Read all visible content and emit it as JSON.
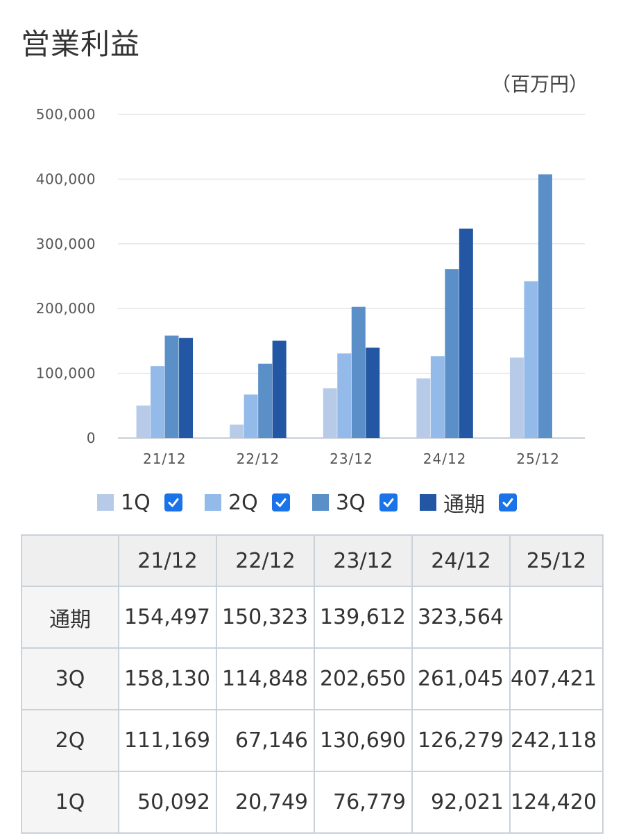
{
  "title": "営業利益",
  "unit": "（百万円）",
  "legend": [
    {
      "label": "1Q",
      "color": "#b7cbe8",
      "checked": true
    },
    {
      "label": "2Q",
      "color": "#93bae9",
      "checked": true
    },
    {
      "label": "3Q",
      "color": "#5a8fc7",
      "checked": true
    },
    {
      "label": "通期",
      "color": "#2457a3",
      "checked": true
    }
  ],
  "chart_data": {
    "type": "bar",
    "categories": [
      "21/12",
      "22/12",
      "23/12",
      "24/12",
      "25/12"
    ],
    "series": [
      {
        "name": "1Q",
        "color": "#b7cbe8",
        "values": [
          50092,
          20749,
          76779,
          92021,
          124420
        ]
      },
      {
        "name": "2Q",
        "color": "#93bae9",
        "values": [
          111169,
          67146,
          130690,
          126279,
          242118
        ]
      },
      {
        "name": "3Q",
        "color": "#5a8fc7",
        "values": [
          158130,
          114848,
          202650,
          261045,
          407421
        ]
      },
      {
        "name": "通期",
        "color": "#2457a3",
        "values": [
          154497,
          150323,
          139612,
          323564,
          null
        ]
      }
    ],
    "ylim": [
      0,
      500000
    ],
    "yticks": [
      "0",
      "100,000",
      "200,000",
      "300,000",
      "400,000",
      "500,000"
    ],
    "grid": true,
    "legend_position": "bottom"
  },
  "table": {
    "headers": [
      "",
      "21/12",
      "22/12",
      "23/12",
      "24/12",
      "25/12"
    ],
    "rows": [
      {
        "label": "通期",
        "values": [
          "154,497",
          "150,323",
          "139,612",
          "323,564",
          ""
        ]
      },
      {
        "label": "3Q",
        "values": [
          "158,130",
          "114,848",
          "202,650",
          "261,045",
          "407,421"
        ]
      },
      {
        "label": "2Q",
        "values": [
          "111,169",
          "67,146",
          "130,690",
          "126,279",
          "242,118"
        ]
      },
      {
        "label": "1Q",
        "values": [
          "50,092",
          "20,749",
          "76,779",
          "92,021",
          "124,420"
        ]
      }
    ]
  }
}
